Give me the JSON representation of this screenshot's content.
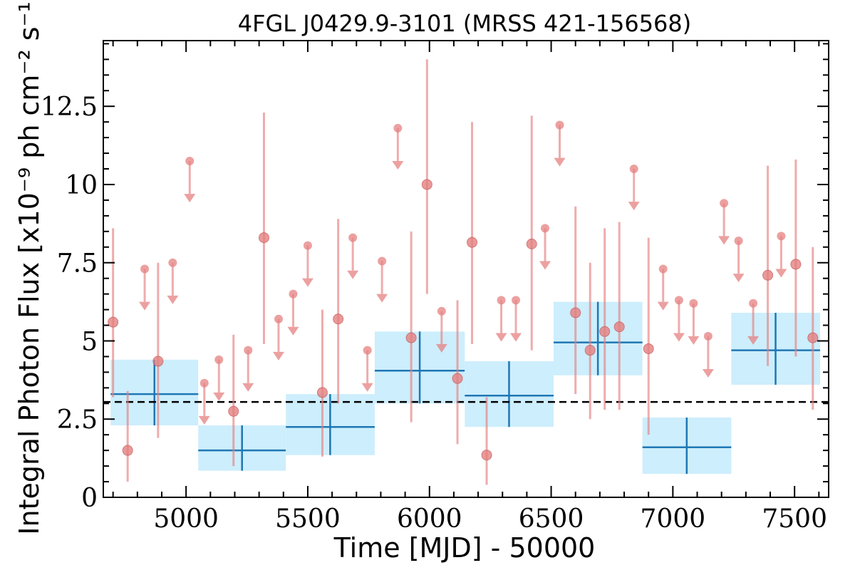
{
  "chart_data": {
    "type": "scatter",
    "title": "4FGL J0429.9-3101 (MRSS 421-156568)",
    "xlabel": "Time [MJD] - 50000",
    "ylabel": "Integral Photon Flux [x10⁻⁹ ph cm⁻² s⁻¹]",
    "xlim": [
      4660,
      7640
    ],
    "ylim": [
      0,
      14.6
    ],
    "xticks": [
      5000,
      5500,
      6000,
      6500,
      7000,
      7500
    ],
    "xtick_labels": [
      "5000",
      "5500",
      "6000",
      "6500",
      "7000",
      "7500"
    ],
    "yticks": [
      0,
      2.5,
      5,
      7.5,
      10,
      12.5
    ],
    "ytick_labels": [
      "0",
      "2.5",
      "5",
      "7.5",
      "10",
      "12.5"
    ],
    "mean_flux": 3.05,
    "colors": {
      "points": "#e58080",
      "points_alpha": 0.65,
      "bins_fill": "#cdeefc",
      "bins_line": "#1f77b4",
      "mean_line": "#000000"
    },
    "detections": [
      {
        "x": 4700,
        "y": 5.6,
        "ylo": 3.2,
        "yhi": 8.6
      },
      {
        "x": 4760,
        "y": 1.5,
        "ylo": 0.5,
        "yhi": 3.4
      },
      {
        "x": 4885,
        "y": 4.35,
        "ylo": 1.9,
        "yhi": 7.5
      },
      {
        "x": 5195,
        "y": 2.75,
        "ylo": 1.0,
        "yhi": 5.2
      },
      {
        "x": 5320,
        "y": 8.3,
        "ylo": 4.9,
        "yhi": 12.3
      },
      {
        "x": 5560,
        "y": 3.35,
        "ylo": 1.3,
        "yhi": 6.0
      },
      {
        "x": 5625,
        "y": 5.7,
        "ylo": 3.0,
        "yhi": 8.9
      },
      {
        "x": 5925,
        "y": 5.1,
        "ylo": 2.4,
        "yhi": 8.5
      },
      {
        "x": 5990,
        "y": 10.0,
        "ylo": 6.5,
        "yhi": 14.0
      },
      {
        "x": 6115,
        "y": 3.8,
        "ylo": 1.7,
        "yhi": 6.3
      },
      {
        "x": 6175,
        "y": 8.15,
        "ylo": 4.9,
        "yhi": 12.0
      },
      {
        "x": 6235,
        "y": 1.35,
        "ylo": 0.4,
        "yhi": 3.2
      },
      {
        "x": 6420,
        "y": 8.1,
        "ylo": 4.7,
        "yhi": 12.2
      },
      {
        "x": 6600,
        "y": 5.9,
        "ylo": 3.3,
        "yhi": 9.3
      },
      {
        "x": 6660,
        "y": 4.7,
        "ylo": 2.5,
        "yhi": 7.5
      },
      {
        "x": 6720,
        "y": 5.3,
        "ylo": 2.8,
        "yhi": 8.6
      },
      {
        "x": 6780,
        "y": 5.45,
        "ylo": 2.8,
        "yhi": 8.8
      },
      {
        "x": 6900,
        "y": 4.75,
        "ylo": 2.0,
        "yhi": 8.3
      },
      {
        "x": 7390,
        "y": 7.1,
        "ylo": 4.2,
        "yhi": 10.6
      },
      {
        "x": 7505,
        "y": 7.45,
        "ylo": 4.5,
        "yhi": 10.8
      },
      {
        "x": 7575,
        "y": 5.1,
        "ylo": 2.8,
        "yhi": 8.0
      }
    ],
    "upper_limits": [
      {
        "x": 4830,
        "y": 7.3
      },
      {
        "x": 4945,
        "y": 7.5
      },
      {
        "x": 5015,
        "y": 10.75
      },
      {
        "x": 5075,
        "y": 3.65
      },
      {
        "x": 5135,
        "y": 4.4
      },
      {
        "x": 5255,
        "y": 4.7
      },
      {
        "x": 5380,
        "y": 5.7
      },
      {
        "x": 5440,
        "y": 6.5
      },
      {
        "x": 5500,
        "y": 8.05
      },
      {
        "x": 5685,
        "y": 8.3
      },
      {
        "x": 5745,
        "y": 4.7
      },
      {
        "x": 5805,
        "y": 7.55
      },
      {
        "x": 5870,
        "y": 11.8
      },
      {
        "x": 6050,
        "y": 5.95
      },
      {
        "x": 6295,
        "y": 6.3
      },
      {
        "x": 6355,
        "y": 6.3
      },
      {
        "x": 6475,
        "y": 8.6
      },
      {
        "x": 6535,
        "y": 11.9
      },
      {
        "x": 6840,
        "y": 10.5
      },
      {
        "x": 6960,
        "y": 7.3
      },
      {
        "x": 7025,
        "y": 6.3
      },
      {
        "x": 7085,
        "y": 6.2
      },
      {
        "x": 7145,
        "y": 5.15
      },
      {
        "x": 7210,
        "y": 9.4
      },
      {
        "x": 7270,
        "y": 8.2
      },
      {
        "x": 7330,
        "y": 6.2
      },
      {
        "x": 7445,
        "y": 8.35
      }
    ],
    "bins": [
      {
        "xmin": 4690,
        "xmax": 5050,
        "x": 4870,
        "y": 3.3,
        "ylo": 2.3,
        "yhi": 4.4
      },
      {
        "xmin": 5050,
        "xmax": 5410,
        "x": 5230,
        "y": 1.5,
        "ylo": 0.85,
        "yhi": 2.3
      },
      {
        "xmin": 5410,
        "xmax": 5775,
        "x": 5592,
        "y": 2.25,
        "ylo": 1.35,
        "yhi": 3.3
      },
      {
        "xmin": 5775,
        "xmax": 6145,
        "x": 5960,
        "y": 4.05,
        "ylo": 3.0,
        "yhi": 5.3
      },
      {
        "xmin": 6145,
        "xmax": 6510,
        "x": 6327,
        "y": 3.25,
        "ylo": 2.25,
        "yhi": 4.35
      },
      {
        "xmin": 6510,
        "xmax": 6875,
        "x": 6692,
        "y": 4.95,
        "ylo": 3.9,
        "yhi": 6.25
      },
      {
        "xmin": 6875,
        "xmax": 7240,
        "x": 7057,
        "y": 1.6,
        "ylo": 0.75,
        "yhi": 2.55
      },
      {
        "xmin": 7240,
        "xmax": 7605,
        "x": 7422,
        "y": 4.7,
        "ylo": 3.6,
        "yhi": 5.9
      }
    ]
  }
}
